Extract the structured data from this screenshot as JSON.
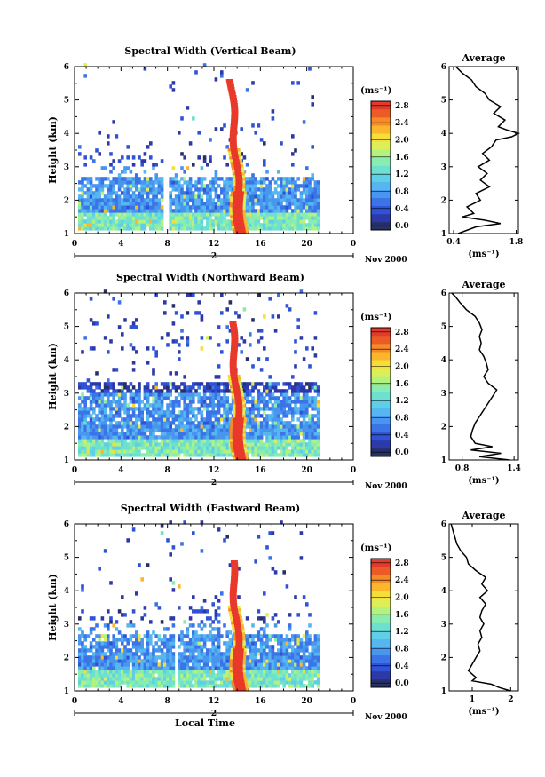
{
  "colors": {
    "scale": [
      "#262f66",
      "#2c39a8",
      "#2f52d6",
      "#3a74e6",
      "#4896ee",
      "#56b6ef",
      "#5ecfe6",
      "#6ee0cf",
      "#8aedb0",
      "#b4f27f",
      "#dcef58",
      "#f6de3a",
      "#fbb62c",
      "#f58a26",
      "#ec5a25",
      "#e23b2b"
    ],
    "red": "#e8392b"
  },
  "chart_data": [
    {
      "type": "heatmap",
      "title": "Spectral Width (Vertical Beam)",
      "ylabel": "Height (km)",
      "xlabel": "",
      "x_ticks": [
        "0",
        "4",
        "8",
        "12",
        "16",
        "20",
        "0"
      ],
      "y_ticks": [
        "1",
        "2",
        "3",
        "4",
        "5",
        "6"
      ],
      "xlim": [
        0,
        24
      ],
      "ylim": [
        1,
        6
      ],
      "date_axis": {
        "day": "2",
        "month_year": "Nov 2000"
      },
      "colorbar": {
        "unit": "(ms⁻¹)",
        "ticks": [
          "0.0",
          "0.4",
          "0.8",
          "1.2",
          "1.6",
          "2.0",
          "2.4",
          "2.8"
        ],
        "range": [
          0,
          3.0
        ]
      },
      "data_end_hour": 21,
      "average": {
        "title": "Average",
        "xlabel": "(ms⁻¹)",
        "x_ticks": [
          "0.4",
          "1.8"
        ],
        "xlim": [
          0.3,
          1.85
        ],
        "height": [
          1.0,
          1.2,
          1.3,
          1.4,
          1.5,
          1.6,
          1.8,
          2.0,
          2.2,
          2.4,
          2.6,
          2.8,
          3.0,
          3.2,
          3.4,
          3.6,
          3.8,
          3.9,
          4.0,
          4.1,
          4.2,
          4.4,
          4.6,
          4.8,
          5.0,
          5.2,
          5.4,
          5.6,
          5.8,
          6.0
        ],
        "value": [
          0.5,
          0.9,
          1.45,
          1.1,
          0.6,
          0.85,
          0.7,
          1.0,
          0.9,
          1.2,
          1.0,
          1.15,
          0.95,
          1.2,
          1.05,
          1.25,
          1.35,
          1.7,
          1.85,
          1.6,
          1.4,
          1.55,
          1.3,
          1.45,
          1.2,
          1.1,
          0.9,
          0.8,
          0.6,
          0.45
        ]
      }
    },
    {
      "type": "heatmap",
      "title": "Spectral Width (Northward Beam)",
      "ylabel": "Height (km)",
      "xlabel": "",
      "x_ticks": [
        "0",
        "4",
        "8",
        "12",
        "16",
        "20",
        "0"
      ],
      "y_ticks": [
        "1",
        "2",
        "3",
        "4",
        "5",
        "6"
      ],
      "xlim": [
        0,
        24
      ],
      "ylim": [
        1,
        6
      ],
      "date_axis": {
        "day": "2",
        "month_year": "Nov 2000"
      },
      "colorbar": {
        "unit": "(ms⁻¹)",
        "ticks": [
          "0.0",
          "0.4",
          "0.8",
          "1.2",
          "1.6",
          "2.0",
          "2.4",
          "2.8"
        ],
        "range": [
          0,
          3.0
        ]
      },
      "data_end_hour": 21,
      "average": {
        "title": "Average",
        "xlabel": "(ms⁻¹)",
        "x_ticks": [
          "0.8",
          "1.4"
        ],
        "xlim": [
          0.65,
          1.45
        ],
        "height": [
          1.0,
          1.1,
          1.2,
          1.3,
          1.4,
          1.5,
          1.7,
          1.9,
          2.1,
          2.3,
          2.5,
          2.7,
          2.9,
          3.1,
          3.3,
          3.5,
          3.7,
          3.9,
          4.1,
          4.3,
          4.5,
          4.7,
          4.9,
          5.1,
          5.3,
          5.5,
          5.7,
          5.9,
          6.0
        ],
        "value": [
          1.35,
          1.0,
          1.25,
          0.9,
          1.15,
          0.95,
          0.9,
          0.92,
          0.95,
          1.0,
          1.05,
          1.1,
          1.15,
          1.2,
          1.1,
          1.05,
          1.1,
          1.08,
          1.05,
          1.0,
          1.02,
          1.0,
          1.03,
          1.0,
          0.95,
          0.85,
          0.78,
          0.72,
          0.68
        ]
      }
    },
    {
      "type": "heatmap",
      "title": "Spectral Width (Eastward Beam)",
      "ylabel": "Height (km)",
      "xlabel": "Local Time",
      "x_ticks": [
        "0",
        "4",
        "8",
        "12",
        "16",
        "20",
        "0"
      ],
      "y_ticks": [
        "1",
        "2",
        "3",
        "4",
        "5",
        "6"
      ],
      "xlim": [
        0,
        24
      ],
      "ylim": [
        1,
        6
      ],
      "date_axis": {
        "day": "2",
        "month_year": "Nov 2000"
      },
      "colorbar": {
        "unit": "(ms⁻¹)",
        "ticks": [
          "0.0",
          "0.4",
          "0.8",
          "1.2",
          "1.6",
          "2.0",
          "2.4",
          "2.8"
        ],
        "range": [
          0,
          3.0
        ]
      },
      "data_end_hour": 21,
      "average": {
        "title": "Average",
        "xlabel": "(ms⁻¹)",
        "x_ticks": [
          "1",
          "2"
        ],
        "xlim": [
          0.4,
          2.2
        ],
        "height": [
          1.0,
          1.1,
          1.2,
          1.3,
          1.4,
          1.6,
          1.8,
          2.0,
          2.2,
          2.4,
          2.6,
          2.8,
          3.0,
          3.2,
          3.4,
          3.6,
          3.8,
          4.0,
          4.2,
          4.4,
          4.6,
          4.8,
          5.0,
          5.2,
          5.4,
          5.6,
          5.8,
          6.0
        ],
        "value": [
          2.0,
          1.7,
          1.5,
          1.0,
          1.1,
          0.9,
          1.0,
          1.1,
          1.2,
          1.15,
          1.25,
          1.2,
          1.3,
          1.2,
          1.25,
          1.35,
          1.2,
          1.4,
          1.25,
          1.35,
          1.1,
          0.9,
          0.85,
          0.7,
          0.6,
          0.55,
          0.5,
          0.45
        ]
      }
    }
  ]
}
